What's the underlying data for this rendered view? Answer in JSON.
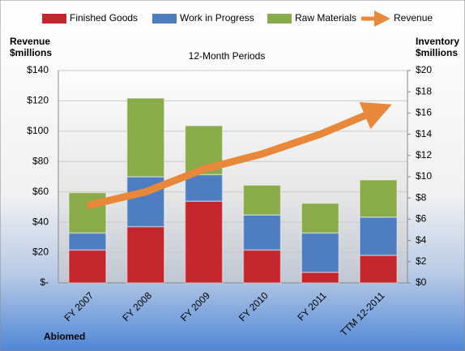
{
  "chart_data": {
    "type": "bar",
    "title": "12-Month Periods",
    "company": "Abiomed",
    "y_label_lines": [
      "Revenue",
      "$millions"
    ],
    "y2_label_lines": [
      "Inventory",
      "$millions"
    ],
    "categories": [
      "FY 2007",
      "FY 2008",
      "FY 2009",
      "FY 2010",
      "FY 2011",
      "TTM 12-2011"
    ],
    "stacked": true,
    "grid": true,
    "legend": "top",
    "series": [
      {
        "name": "Finished Goods",
        "color": "#c4262e",
        "axis": "y2",
        "values": [
          3.1,
          5.3,
          7.7,
          3.1,
          1.0,
          2.6
        ]
      },
      {
        "name": "Work in Progress",
        "color": "#4f7ec0",
        "axis": "y2",
        "values": [
          1.6,
          4.7,
          2.5,
          3.3,
          3.7,
          3.6
        ]
      },
      {
        "name": "Raw Materials",
        "color": "#8aab4a",
        "axis": "y2",
        "values": [
          3.8,
          7.4,
          4.6,
          2.8,
          2.8,
          3.5
        ]
      },
      {
        "name": "Revenue",
        "color": "#e8883a",
        "type": "line",
        "values": [
          51,
          60,
          75,
          85,
          98,
          114
        ]
      }
    ],
    "ylim": [
      0,
      140
    ],
    "yticks": [
      {
        "value": 0,
        "label": "$-"
      },
      {
        "value": 20,
        "label": "$20"
      },
      {
        "value": 40,
        "label": "$40"
      },
      {
        "value": 60,
        "label": "$60"
      },
      {
        "value": 80,
        "label": "$80"
      },
      {
        "value": 100,
        "label": "$100"
      },
      {
        "value": 120,
        "label": "$120"
      },
      {
        "value": 140,
        "label": "$140"
      }
    ],
    "y2lim": [
      0,
      20
    ],
    "y2ticks": [
      {
        "value": 0,
        "label": "$0"
      },
      {
        "value": 2,
        "label": "$2"
      },
      {
        "value": 4,
        "label": "$4"
      },
      {
        "value": 6,
        "label": "$6"
      },
      {
        "value": 8,
        "label": "$8"
      },
      {
        "value": 10,
        "label": "$10"
      },
      {
        "value": 12,
        "label": "$12"
      },
      {
        "value": 14,
        "label": "$14"
      },
      {
        "value": 16,
        "label": "$16"
      },
      {
        "value": 18,
        "label": "$18"
      },
      {
        "value": 20,
        "label": "$20"
      }
    ]
  }
}
